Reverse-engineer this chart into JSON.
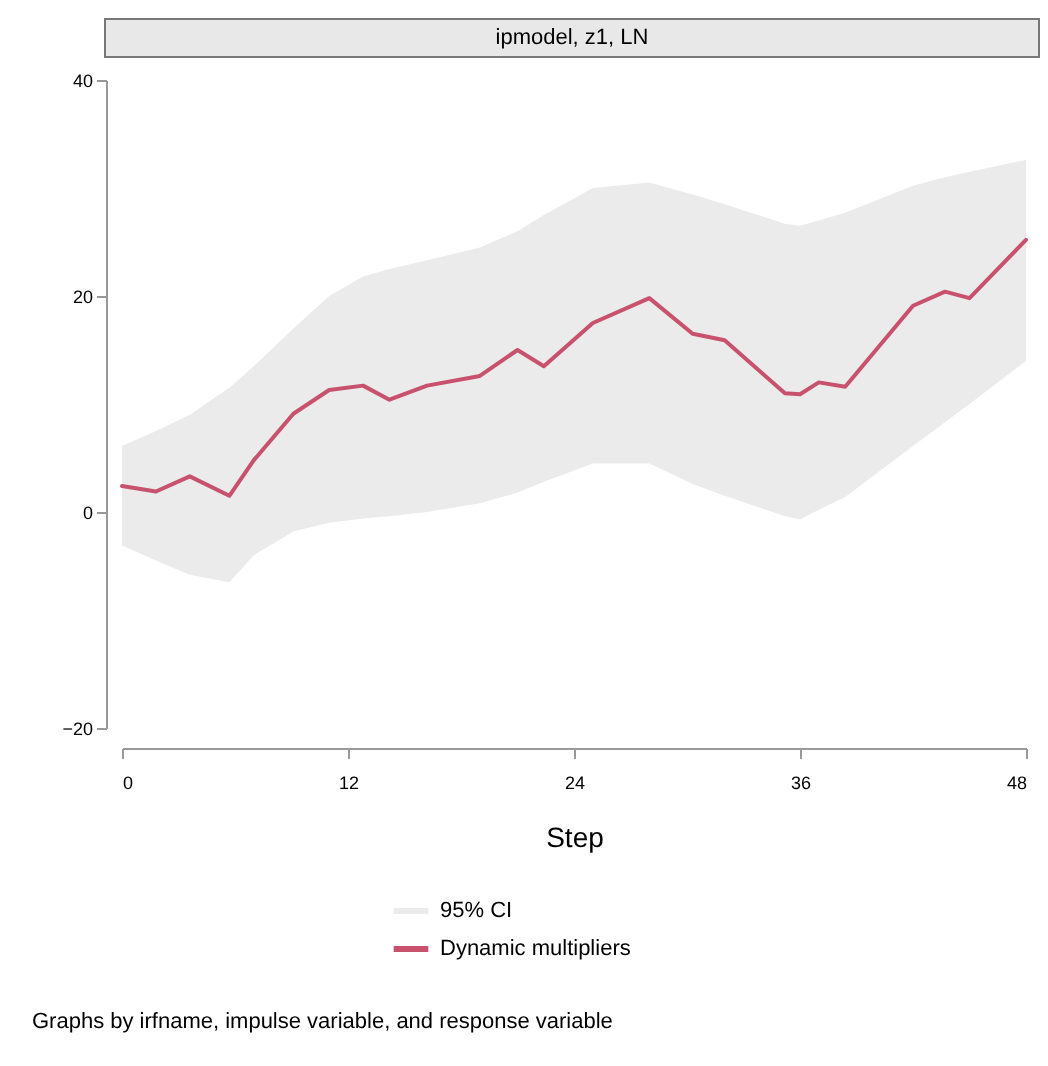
{
  "chart_data": {
    "type": "line",
    "title": "ipmodel, z1, LN",
    "xlabel": "Step",
    "annotations": [
      "95% CI",
      "Graphs by irfname, impulse variable, and response variable"
    ],
    "xlim": [
      0,
      48
    ],
    "xticks": [
      0,
      12,
      24,
      36,
      48
    ],
    "ylim": [
      -20,
      40
    ],
    "yticks": [
      -20,
      0,
      20,
      40
    ],
    "grid": false,
    "legend": "bottom",
    "series": [
      {
        "name": "Dynamic multipliers",
        "color": "#c8526d",
        "x": [
          0,
          1.8,
          3.6,
          5.7,
          7,
          9.1,
          11,
          12.8,
          14.2,
          16.2,
          19,
          21,
          22.4,
          25,
          28,
          30.3,
          32,
          35.2,
          36,
          37,
          38.4,
          42,
          43.7,
          45,
          48
        ],
        "values": [
          2.4,
          1.9,
          3.3,
          1.5,
          4.8,
          9.1,
          11.3,
          11.7,
          10.4,
          11.7,
          12.6,
          15,
          13.5,
          17.5,
          19.8,
          16.5,
          15.9,
          11,
          10.9,
          12,
          11.6,
          19.1,
          20.4,
          19.8,
          25.2
        ],
        "lower": [
          -3.1,
          -4.5,
          -5.8,
          -6.5,
          -4,
          -1.8,
          -1,
          -0.6,
          -0.4,
          0,
          0.8,
          1.8,
          2.8,
          4.5,
          4.5,
          2.6,
          1.5,
          -0.4,
          -0.7,
          0.2,
          1.4,
          6.1,
          8.3,
          10,
          14
        ],
        "upper": [
          6.1,
          7.5,
          9,
          11.5,
          13.5,
          17,
          20,
          21.8,
          22.5,
          23.3,
          24.5,
          26,
          27.5,
          30,
          30.5,
          29.4,
          28.5,
          26.7,
          26.5,
          27,
          27.7,
          30.2,
          31,
          31.5,
          32.6
        ]
      }
    ]
  }
}
